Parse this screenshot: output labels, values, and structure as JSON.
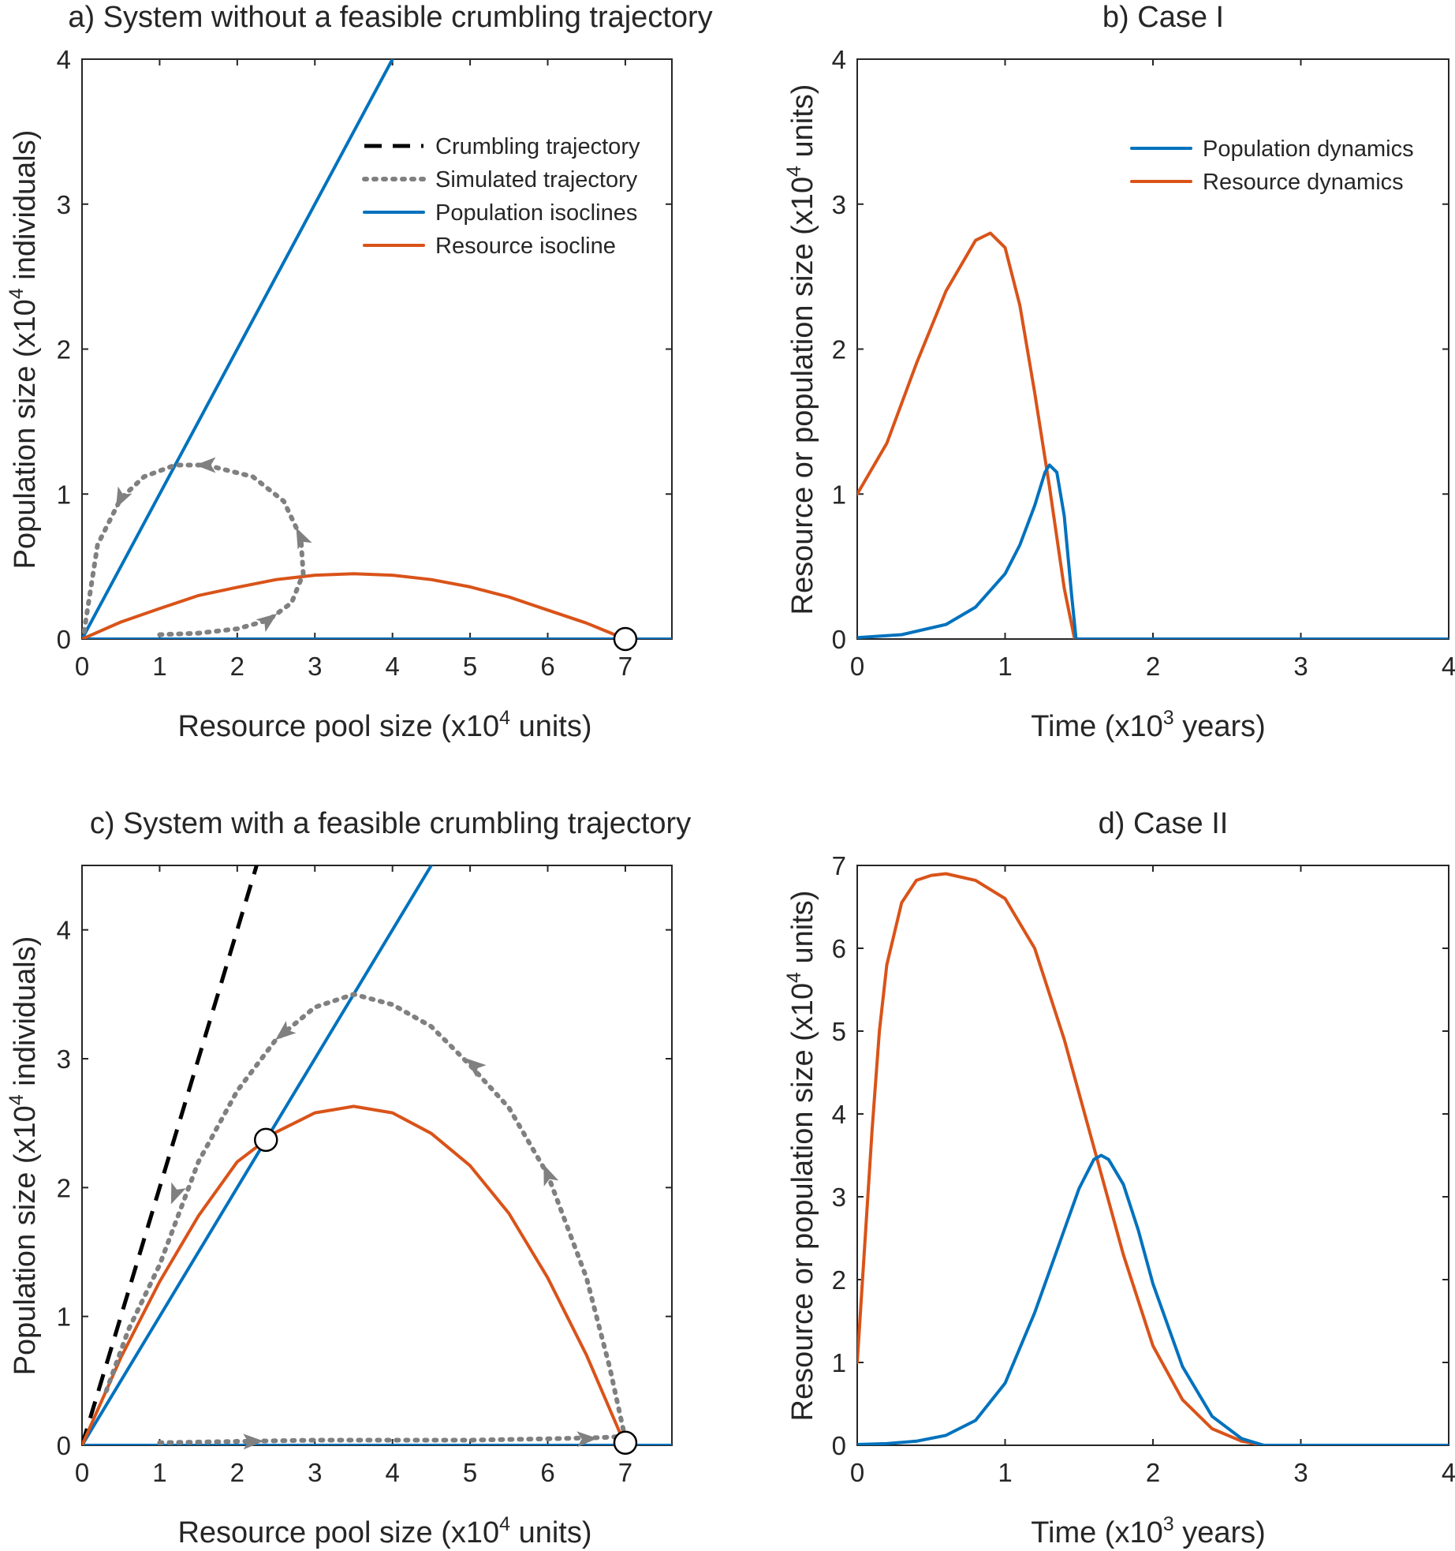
{
  "colors": {
    "population": "#0072BD",
    "resource": "#D95319",
    "crumbling": "#000000",
    "simulated": "#808080",
    "axis": "#262626"
  },
  "chart_data": [
    {
      "id": "a",
      "type": "line",
      "title": "a) System without a feasible crumbling trajectory",
      "xlabel": {
        "pre": "Resource pool size (x10",
        "sup": "4",
        "post": " units)"
      },
      "ylabel": {
        "pre": "Population size (x10",
        "sup": "4",
        "post": " individuals)"
      },
      "xlim": [
        0,
        7.6
      ],
      "ylim": [
        0,
        4
      ],
      "xticks": [
        0,
        1,
        2,
        3,
        4,
        5,
        6,
        7
      ],
      "yticks": [
        0,
        1,
        2,
        3,
        4
      ],
      "legend": {
        "position": "top-right",
        "entries": [
          {
            "label": "Crumbling trajectory",
            "style": "dashed",
            "color_key": "crumbling"
          },
          {
            "label": "Simulated trajectory",
            "style": "dotted",
            "color_key": "simulated"
          },
          {
            "label": "Population isoclines",
            "style": "solid",
            "color_key": "population"
          },
          {
            "label": "Resource isocline",
            "style": "solid",
            "color_key": "resource"
          }
        ]
      },
      "series": [
        {
          "name": "Population isoclines (diagonal)",
          "kind": "solid",
          "color_key": "population",
          "x": [
            0,
            4
          ],
          "y": [
            0,
            4
          ]
        },
        {
          "name": "Population isoclines (axis)",
          "kind": "solid",
          "color_key": "population",
          "x": [
            0,
            7.6
          ],
          "y": [
            0,
            0
          ]
        },
        {
          "name": "Resource isocline",
          "kind": "solid",
          "color_key": "resource",
          "x": [
            0,
            0.5,
            1,
            1.5,
            2,
            2.5,
            3,
            3.5,
            4,
            4.5,
            5,
            5.5,
            6,
            6.5,
            7
          ],
          "y": [
            0,
            0.117,
            0.21,
            0.3,
            0.357,
            0.41,
            0.44,
            0.45,
            0.44,
            0.41,
            0.36,
            0.29,
            0.2,
            0.11,
            0
          ]
        },
        {
          "name": "Simulated trajectory",
          "kind": "dotted",
          "color_key": "simulated",
          "x": [
            1.0,
            1.5,
            2.0,
            2.4,
            2.7,
            2.85,
            2.82,
            2.6,
            2.2,
            1.6,
            1.2,
            0.8,
            0.5,
            0.2,
            0.02
          ],
          "y": [
            0.03,
            0.04,
            0.07,
            0.13,
            0.25,
            0.45,
            0.7,
            0.95,
            1.12,
            1.2,
            1.2,
            1.12,
            0.97,
            0.65,
            0.03
          ]
        }
      ],
      "arrows": [
        {
          "x": 2.4,
          "y": 0.13,
          "towards": [
            2.7,
            0.25
          ]
        },
        {
          "x": 2.82,
          "y": 0.7,
          "towards": [
            2.6,
            0.95
          ]
        },
        {
          "x": 1.6,
          "y": 1.2,
          "towards": [
            1.2,
            1.2
          ]
        },
        {
          "x": 0.5,
          "y": 0.97,
          "towards": [
            0.2,
            0.65
          ]
        }
      ],
      "markers": [
        {
          "x": 7,
          "y": 0
        }
      ]
    },
    {
      "id": "b",
      "type": "line",
      "title": "b) Case I",
      "xlabel": {
        "pre": "Time (x10",
        "sup": "3",
        "post": " years)"
      },
      "ylabel": {
        "pre": "Resource or population size (x10",
        "sup": "4",
        "post": " units)"
      },
      "xlim": [
        0,
        4
      ],
      "ylim": [
        0,
        4
      ],
      "xticks": [
        0,
        1,
        2,
        3,
        4
      ],
      "yticks": [
        0,
        1,
        2,
        3,
        4
      ],
      "legend": {
        "position": "top-right",
        "entries": [
          {
            "label": "Population dynamics",
            "style": "solid",
            "color_key": "population"
          },
          {
            "label": "Resource dynamics",
            "style": "solid",
            "color_key": "resource"
          }
        ]
      },
      "series": [
        {
          "name": "Resource dynamics",
          "kind": "solid",
          "color_key": "resource",
          "x": [
            0,
            0.2,
            0.4,
            0.6,
            0.8,
            0.9,
            1.0,
            1.1,
            1.2,
            1.3,
            1.4,
            1.47,
            4.0
          ],
          "y": [
            1.0,
            1.35,
            1.9,
            2.4,
            2.75,
            2.8,
            2.7,
            2.3,
            1.7,
            1.05,
            0.35,
            0,
            0
          ]
        },
        {
          "name": "Population dynamics",
          "kind": "solid",
          "color_key": "population",
          "x": [
            0,
            0.3,
            0.6,
            0.8,
            1.0,
            1.1,
            1.2,
            1.27,
            1.3,
            1.35,
            1.4,
            1.45,
            1.48,
            4.0
          ],
          "y": [
            0.01,
            0.03,
            0.1,
            0.22,
            0.45,
            0.65,
            0.92,
            1.15,
            1.2,
            1.15,
            0.85,
            0.3,
            0,
            0
          ]
        }
      ]
    },
    {
      "id": "c",
      "type": "line",
      "title": "c) System with a feasible crumbling trajectory",
      "xlabel": {
        "pre": "Resource pool size (x10",
        "sup": "4",
        "post": " units)"
      },
      "ylabel": {
        "pre": "Population size (x10",
        "sup": "4",
        "post": " individuals)"
      },
      "xlim": [
        0,
        7.6
      ],
      "ylim": [
        0,
        4.5
      ],
      "xticks": [
        0,
        1,
        2,
        3,
        4,
        5,
        6,
        7
      ],
      "yticks": [
        0,
        1,
        2,
        3,
        4
      ],
      "series": [
        {
          "name": "Crumbling trajectory",
          "kind": "dashed",
          "color_key": "crumbling",
          "x": [
            0,
            0.6,
            1.2,
            1.8,
            2.25
          ],
          "y": [
            0,
            1.2,
            2.4,
            3.6,
            4.5
          ]
        },
        {
          "name": "Population isoclines (diagonal)",
          "kind": "solid",
          "color_key": "population",
          "x": [
            0,
            4.5
          ],
          "y": [
            0,
            4.5
          ]
        },
        {
          "name": "Population isoclines (axis)",
          "kind": "solid",
          "color_key": "population",
          "x": [
            0,
            7.6
          ],
          "y": [
            0,
            0
          ]
        },
        {
          "name": "Resource isocline",
          "kind": "solid",
          "color_key": "resource",
          "x": [
            0,
            0.5,
            1,
            1.5,
            2,
            2.37,
            2.5,
            3,
            3.5,
            4,
            4.5,
            5,
            5.5,
            6,
            6.5,
            7
          ],
          "y": [
            0,
            0.68,
            1.27,
            1.78,
            2.2,
            2.37,
            2.43,
            2.58,
            2.63,
            2.58,
            2.42,
            2.17,
            1.8,
            1.3,
            0.7,
            0
          ]
        },
        {
          "name": "Simulated trajectory (lower)",
          "kind": "dotted",
          "color_key": "simulated",
          "x": [
            1.0,
            2.0,
            3.0,
            4.0,
            5.0,
            6.0,
            6.7,
            7.0
          ],
          "y": [
            0.02,
            0.03,
            0.04,
            0.04,
            0.04,
            0.05,
            0.06,
            0.07
          ]
        },
        {
          "name": "Simulated trajectory (upper)",
          "kind": "dotted",
          "color_key": "simulated",
          "x": [
            7.0,
            6.8,
            6.5,
            6.0,
            5.5,
            5.0,
            4.5,
            4.0,
            3.5,
            3.0,
            2.5,
            2.0,
            1.5,
            1.0,
            0.6,
            0.3
          ],
          "y": [
            0.05,
            0.6,
            1.3,
            2.1,
            2.62,
            2.95,
            3.25,
            3.42,
            3.5,
            3.4,
            3.15,
            2.75,
            2.2,
            1.4,
            0.9,
            0.4
          ]
        }
      ],
      "arrows": [
        {
          "x": 2.2,
          "y": 0.03,
          "towards": [
            2.6,
            0.035
          ]
        },
        {
          "x": 6.5,
          "y": 0.05,
          "towards": [
            6.9,
            0.06
          ]
        },
        {
          "x": 6.0,
          "y": 2.1,
          "towards": [
            5.9,
            2.25
          ]
        },
        {
          "x": 5.05,
          "y": 2.95,
          "towards": [
            4.95,
            3.0
          ]
        },
        {
          "x": 2.6,
          "y": 3.2,
          "towards": [
            2.4,
            3.1
          ]
        },
        {
          "x": 1.2,
          "y": 1.95,
          "towards": [
            1.1,
            1.8
          ]
        }
      ],
      "markers": [
        {
          "x": 2.37,
          "y": 2.37
        },
        {
          "x": 7,
          "y": 0.02
        }
      ]
    },
    {
      "id": "d",
      "type": "line",
      "title": "d) Case II",
      "xlabel": {
        "pre": "Time (x10",
        "sup": "3",
        "post": " years)"
      },
      "ylabel": {
        "pre": "Resource or population size (x10",
        "sup": "4",
        "post": " units)"
      },
      "xlim": [
        0,
        4
      ],
      "ylim": [
        0,
        7
      ],
      "xticks": [
        0,
        1,
        2,
        3,
        4
      ],
      "yticks": [
        0,
        1,
        2,
        3,
        4,
        5,
        6,
        7
      ],
      "series": [
        {
          "name": "Resource dynamics",
          "kind": "solid",
          "color_key": "resource",
          "x": [
            0,
            0.05,
            0.1,
            0.15,
            0.2,
            0.3,
            0.4,
            0.5,
            0.6,
            0.8,
            1.0,
            1.2,
            1.4,
            1.6,
            1.8,
            2.0,
            2.2,
            2.4,
            2.6,
            2.75,
            4.0
          ],
          "y": [
            1.0,
            2.4,
            3.8,
            5.0,
            5.8,
            6.55,
            6.82,
            6.88,
            6.9,
            6.82,
            6.6,
            6.0,
            4.9,
            3.6,
            2.3,
            1.2,
            0.55,
            0.2,
            0.05,
            0,
            0
          ]
        },
        {
          "name": "Population dynamics",
          "kind": "solid",
          "color_key": "population",
          "x": [
            0,
            0.2,
            0.4,
            0.6,
            0.8,
            1.0,
            1.2,
            1.4,
            1.5,
            1.6,
            1.65,
            1.7,
            1.8,
            1.9,
            2.0,
            2.2,
            2.4,
            2.6,
            2.75,
            4.0
          ],
          "y": [
            0.01,
            0.02,
            0.05,
            0.12,
            0.3,
            0.75,
            1.6,
            2.6,
            3.1,
            3.45,
            3.5,
            3.45,
            3.15,
            2.6,
            1.95,
            0.95,
            0.35,
            0.08,
            0,
            0
          ]
        }
      ]
    }
  ]
}
